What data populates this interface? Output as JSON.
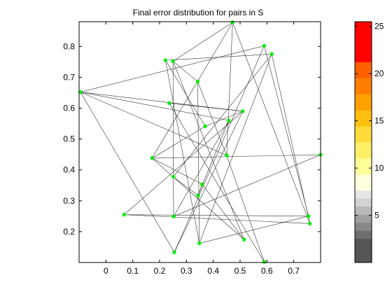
{
  "chart_data": {
    "type": "scatter",
    "title": "Final error distribution for pairs in S",
    "xlabel": "",
    "ylabel": "",
    "xlim": [
      -0.1,
      0.8
    ],
    "ylim": [
      0.1,
      0.88
    ],
    "xticks": [
      0,
      0.1,
      0.2,
      0.3,
      0.4,
      0.5,
      0.6,
      0.7
    ],
    "xtick_labels": [
      "0",
      "0.1",
      "0.2",
      "0.3",
      "0.4",
      "0.5",
      "0.6",
      "0.7"
    ],
    "yticks": [
      0.2,
      0.3,
      0.4,
      0.5,
      0.6,
      0.7,
      0.8
    ],
    "ytick_labels": [
      "0.2",
      "0.3",
      "0.4",
      "0.5",
      "0.6",
      "0.7",
      "0.8"
    ],
    "grid": false,
    "legend": false,
    "point_color": "#00ee00",
    "edge_color": "#333333",
    "points": [
      {
        "x": -0.095,
        "y": 0.652
      },
      {
        "x": 0.068,
        "y": 0.255
      },
      {
        "x": 0.172,
        "y": 0.438
      },
      {
        "x": 0.222,
        "y": 0.755
      },
      {
        "x": 0.236,
        "y": 0.616
      },
      {
        "x": 0.25,
        "y": 0.752
      },
      {
        "x": 0.251,
        "y": 0.378
      },
      {
        "x": 0.252,
        "y": 0.249
      },
      {
        "x": 0.255,
        "y": 0.133
      },
      {
        "x": 0.342,
        "y": 0.686
      },
      {
        "x": 0.343,
        "y": 0.317
      },
      {
        "x": 0.348,
        "y": 0.162
      },
      {
        "x": 0.359,
        "y": 0.353
      },
      {
        "x": 0.37,
        "y": 0.541
      },
      {
        "x": 0.45,
        "y": 0.447
      },
      {
        "x": 0.458,
        "y": 0.56
      },
      {
        "x": 0.472,
        "y": 0.878
      },
      {
        "x": 0.51,
        "y": 0.59
      },
      {
        "x": 0.515,
        "y": 0.174
      },
      {
        "x": 0.59,
        "y": 0.102
      },
      {
        "x": 0.59,
        "y": 0.802
      },
      {
        "x": 0.618,
        "y": 0.775
      },
      {
        "x": 0.755,
        "y": 0.25
      },
      {
        "x": 0.76,
        "y": 0.226
      },
      {
        "x": 0.8,
        "y": 0.449
      }
    ],
    "edges": [
      [
        0,
        17
      ],
      [
        0,
        15
      ],
      [
        0,
        14
      ],
      [
        0,
        20
      ],
      [
        0,
        8
      ],
      [
        1,
        22
      ],
      [
        1,
        23
      ],
      [
        1,
        17
      ],
      [
        2,
        16
      ],
      [
        2,
        12
      ],
      [
        2,
        13
      ],
      [
        2,
        24
      ],
      [
        2,
        18
      ],
      [
        3,
        13
      ],
      [
        3,
        21
      ],
      [
        3,
        11
      ],
      [
        4,
        17
      ],
      [
        4,
        19
      ],
      [
        5,
        9
      ],
      [
        5,
        16
      ],
      [
        5,
        7
      ],
      [
        5,
        18
      ],
      [
        6,
        10
      ],
      [
        6,
        21
      ],
      [
        7,
        15
      ],
      [
        7,
        24
      ],
      [
        8,
        20
      ],
      [
        8,
        17
      ],
      [
        9,
        11
      ],
      [
        9,
        14
      ],
      [
        10,
        15
      ],
      [
        10,
        12
      ],
      [
        11,
        21
      ],
      [
        11,
        22
      ],
      [
        12,
        18
      ],
      [
        13,
        17
      ],
      [
        14,
        16
      ],
      [
        14,
        19
      ],
      [
        16,
        23
      ],
      [
        20,
        22
      ],
      [
        21,
        23
      ]
    ],
    "colorbar": {
      "range": [
        0,
        25.5
      ],
      "ticks": [
        5,
        10,
        15,
        20,
        25
      ],
      "tick_labels": [
        "5",
        "10",
        "15",
        "20",
        "25"
      ],
      "stops": [
        {
          "from": 0,
          "to": 2.55,
          "color": "#555555"
        },
        {
          "from": 2.55,
          "to": 3.4,
          "color": "#6e6e6e"
        },
        {
          "from": 3.4,
          "to": 4.25,
          "color": "#888888"
        },
        {
          "from": 4.25,
          "to": 5.1,
          "color": "#a0a0a0"
        },
        {
          "from": 5.1,
          "to": 5.95,
          "color": "#b8b8b8"
        },
        {
          "from": 5.95,
          "to": 6.8,
          "color": "#d2d2d2"
        },
        {
          "from": 6.8,
          "to": 7.65,
          "color": "#e6e6e6"
        },
        {
          "from": 7.65,
          "to": 9.35,
          "color": "#ffffe0"
        },
        {
          "from": 9.35,
          "to": 11.05,
          "color": "#ffff99"
        },
        {
          "from": 11.05,
          "to": 12.75,
          "color": "#fff06a"
        },
        {
          "from": 12.75,
          "to": 14.45,
          "color": "#ffdc3c"
        },
        {
          "from": 14.45,
          "to": 16.15,
          "color": "#ffbf10"
        },
        {
          "from": 16.15,
          "to": 17.85,
          "color": "#ffa000"
        },
        {
          "from": 17.85,
          "to": 19.55,
          "color": "#ff7e00"
        },
        {
          "from": 19.55,
          "to": 21.25,
          "color": "#ff6000"
        },
        {
          "from": 21.25,
          "to": 25.5,
          "color": "#ff0000"
        }
      ]
    }
  }
}
